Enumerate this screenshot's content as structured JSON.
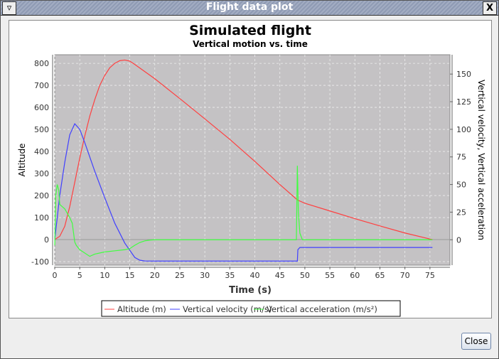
{
  "window": {
    "title": "Flight data plot",
    "close_label": "Close"
  },
  "chart_data": {
    "type": "line",
    "title": "Simulated flight",
    "subtitle": "Vertical motion vs. time",
    "xlabel": "Time (s)",
    "ylabel_left": "Altitude",
    "ylabel_right": "Vertical velocity, Vertical acceleration",
    "xlim": [
      0,
      79
    ],
    "ylim_left": [
      -116,
      839
    ],
    "ylim_right": [
      -23,
      167.5
    ],
    "x_ticks": [
      "0",
      "5",
      "10",
      "15",
      "20",
      "25",
      "30",
      "35",
      "40",
      "45",
      "50",
      "55",
      "60",
      "65",
      "70",
      "75"
    ],
    "y_left_ticks": [
      "-100",
      "0",
      "100",
      "200",
      "300",
      "400",
      "500",
      "600",
      "700",
      "800"
    ],
    "y_right_ticks": [
      "0",
      "25",
      "50",
      "75",
      "100",
      "125",
      "150"
    ],
    "grid": true,
    "legend_position": "bottom",
    "series": [
      {
        "name": "Altitude (m)",
        "axis": "left",
        "color": "#ff4040",
        "points": [
          [
            0,
            0
          ],
          [
            1,
            15
          ],
          [
            2,
            60
          ],
          [
            3,
            150
          ],
          [
            4,
            260
          ],
          [
            5,
            370
          ],
          [
            6,
            470
          ],
          [
            7,
            560
          ],
          [
            8,
            635
          ],
          [
            9,
            700
          ],
          [
            10,
            745
          ],
          [
            11,
            780
          ],
          [
            12,
            800
          ],
          [
            13,
            812
          ],
          [
            14,
            815
          ],
          [
            15,
            810
          ],
          [
            16,
            795
          ],
          [
            20,
            730
          ],
          [
            25,
            640
          ],
          [
            30,
            548
          ],
          [
            35,
            455
          ],
          [
            40,
            355
          ],
          [
            45,
            250
          ],
          [
            48.5,
            180
          ],
          [
            50,
            165
          ],
          [
            55,
            130
          ],
          [
            60,
            95
          ],
          [
            65,
            62
          ],
          [
            70,
            30
          ],
          [
            75.5,
            0
          ]
        ]
      },
      {
        "name": "Vertical velocity (m/s)",
        "axis": "right",
        "color": "#4040ff",
        "points": [
          [
            0,
            0
          ],
          [
            0.5,
            20
          ],
          [
            1,
            40
          ],
          [
            2,
            70
          ],
          [
            3,
            95
          ],
          [
            4,
            105
          ],
          [
            5,
            100
          ],
          [
            6,
            88
          ],
          [
            8,
            62
          ],
          [
            10,
            38
          ],
          [
            12,
            15
          ],
          [
            14,
            -3
          ],
          [
            16,
            -16
          ],
          [
            17,
            -18.5
          ],
          [
            18,
            -19.2
          ],
          [
            20,
            -19.3
          ],
          [
            48.5,
            -19.3
          ],
          [
            48.6,
            -9
          ],
          [
            49,
            -7
          ],
          [
            75.5,
            -7
          ]
        ]
      },
      {
        "name": "Vertical acceleration (m/s²)",
        "axis": "right",
        "color": "#40ff40",
        "points": [
          [
            0,
            -5
          ],
          [
            0.2,
            40
          ],
          [
            0.5,
            50
          ],
          [
            0.8,
            45
          ],
          [
            1,
            32
          ],
          [
            1.5,
            30
          ],
          [
            2,
            28
          ],
          [
            3,
            20
          ],
          [
            3.5,
            15
          ],
          [
            4,
            -2
          ],
          [
            4.3,
            -5
          ],
          [
            5,
            -9
          ],
          [
            7,
            -15
          ],
          [
            8,
            -13
          ],
          [
            10,
            -11
          ],
          [
            12,
            -10
          ],
          [
            14,
            -9
          ],
          [
            15,
            -8
          ],
          [
            16,
            -5
          ],
          [
            17,
            -2.5
          ],
          [
            18,
            -1
          ],
          [
            19,
            -0.3
          ],
          [
            20,
            0
          ],
          [
            48.3,
            0
          ],
          [
            48.5,
            67
          ],
          [
            48.7,
            25
          ],
          [
            49,
            6
          ],
          [
            49.5,
            0
          ],
          [
            75.5,
            0
          ]
        ]
      }
    ]
  }
}
